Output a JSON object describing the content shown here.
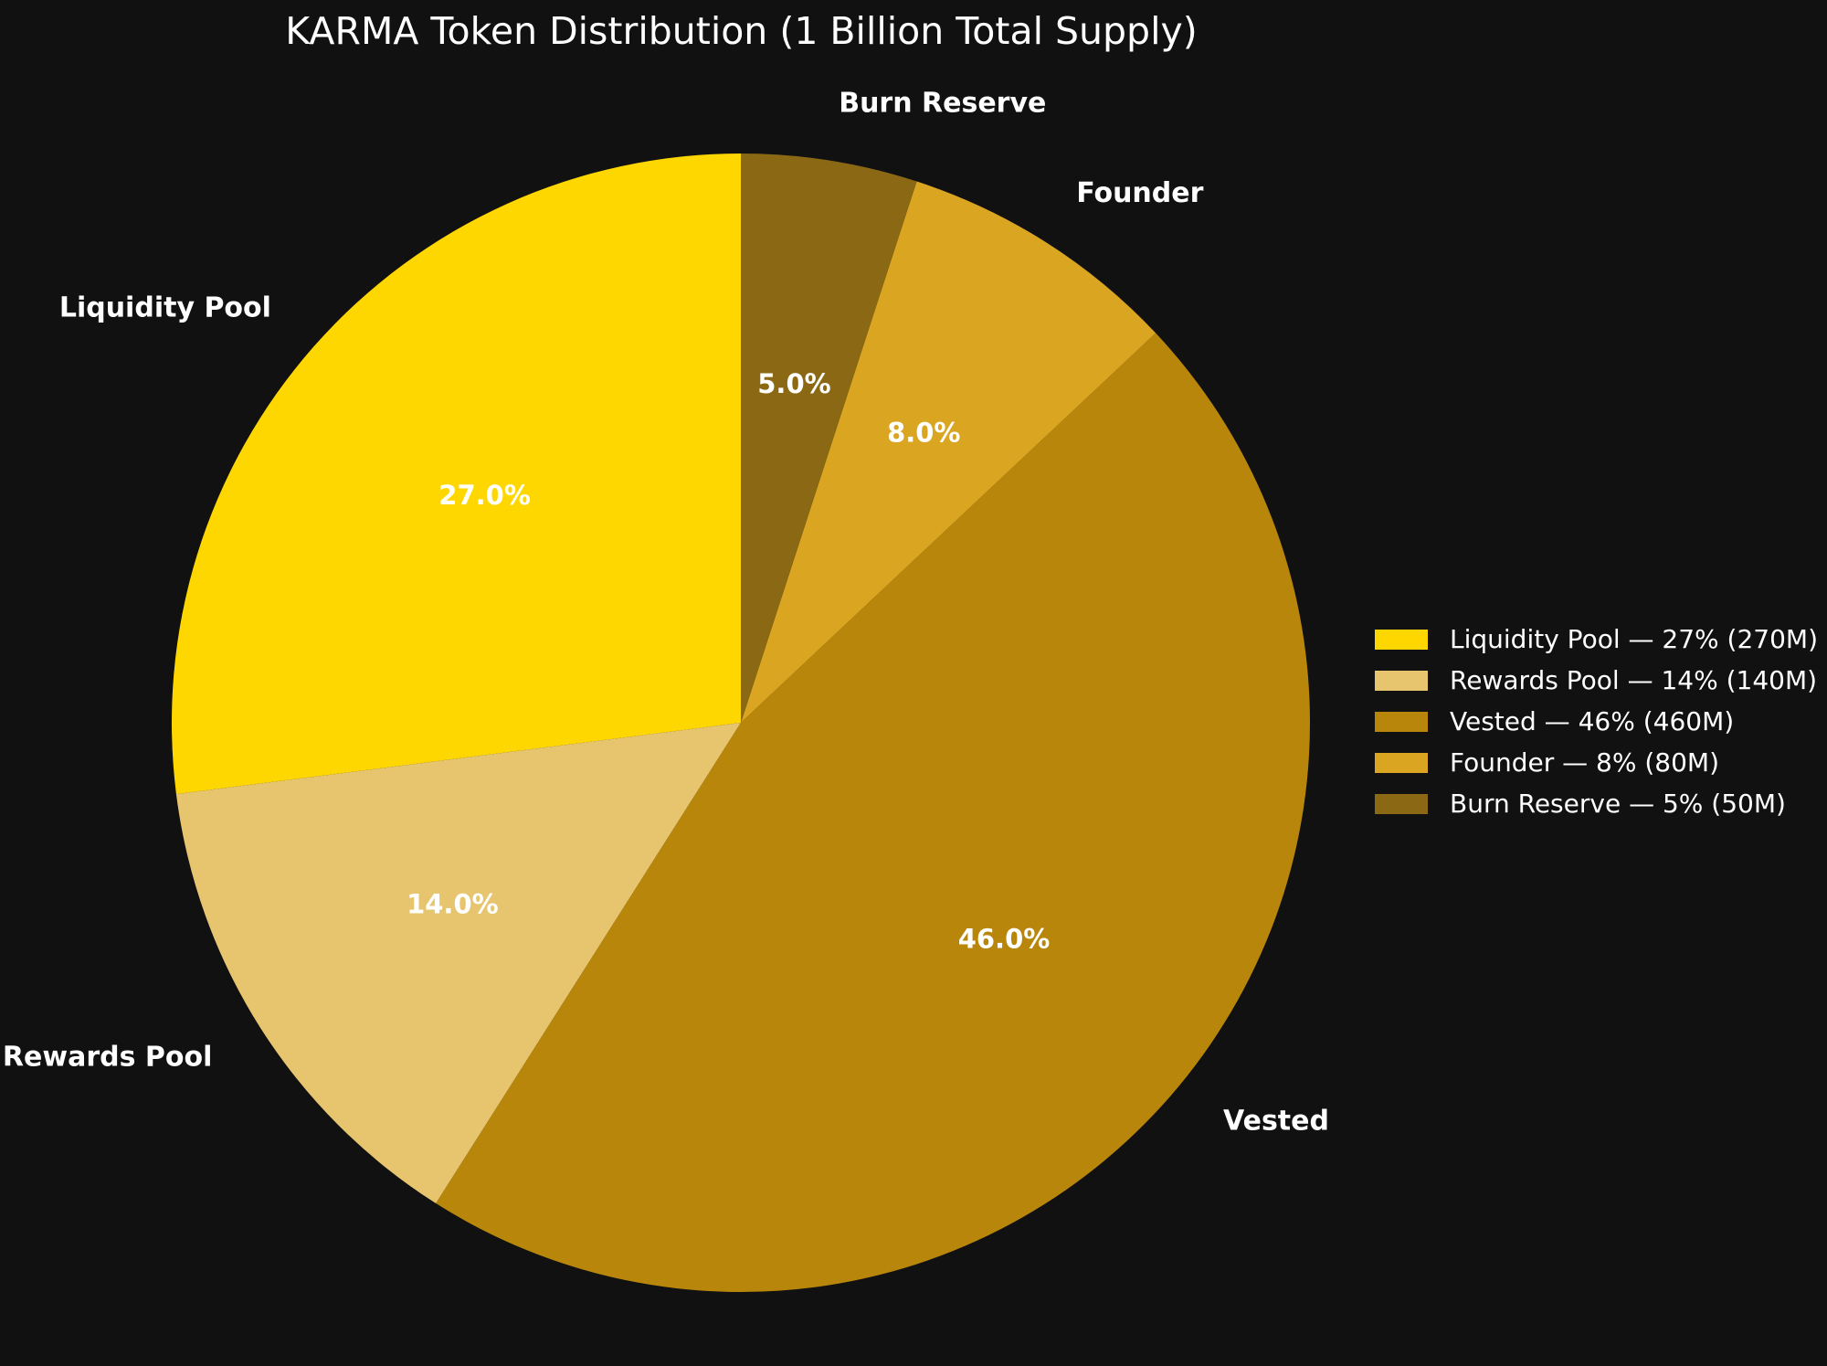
{
  "chart_data": {
    "type": "pie",
    "title": "KARMA Token Distribution (1 Billion Total Supply)",
    "slices": [
      {
        "label": "Liquidity Pool",
        "value": 27,
        "pct_label": "27.0%",
        "color": "#FFD700"
      },
      {
        "label": "Rewards Pool",
        "value": 14,
        "pct_label": "14.0%",
        "color": "#E6C56E"
      },
      {
        "label": "Vested",
        "value": 46,
        "pct_label": "46.0%",
        "color": "#B8860B"
      },
      {
        "label": "Founder",
        "value": 8,
        "pct_label": "8.0%",
        "color": "#DAA520"
      },
      {
        "label": "Burn Reserve",
        "value": 5,
        "pct_label": "5.0%",
        "color": "#8B6914"
      }
    ],
    "start_angle_deg": 90,
    "direction": "counterclockwise",
    "legend": {
      "position": "right",
      "entries": [
        "Liquidity Pool — 27% (270M)",
        "Rewards Pool — 14% (140M)",
        "Vested — 46% (460M)",
        "Founder — 8% (80M)",
        "Burn Reserve — 5% (50M)"
      ]
    },
    "background": "#111111",
    "text_color": "#FFFFFF"
  }
}
